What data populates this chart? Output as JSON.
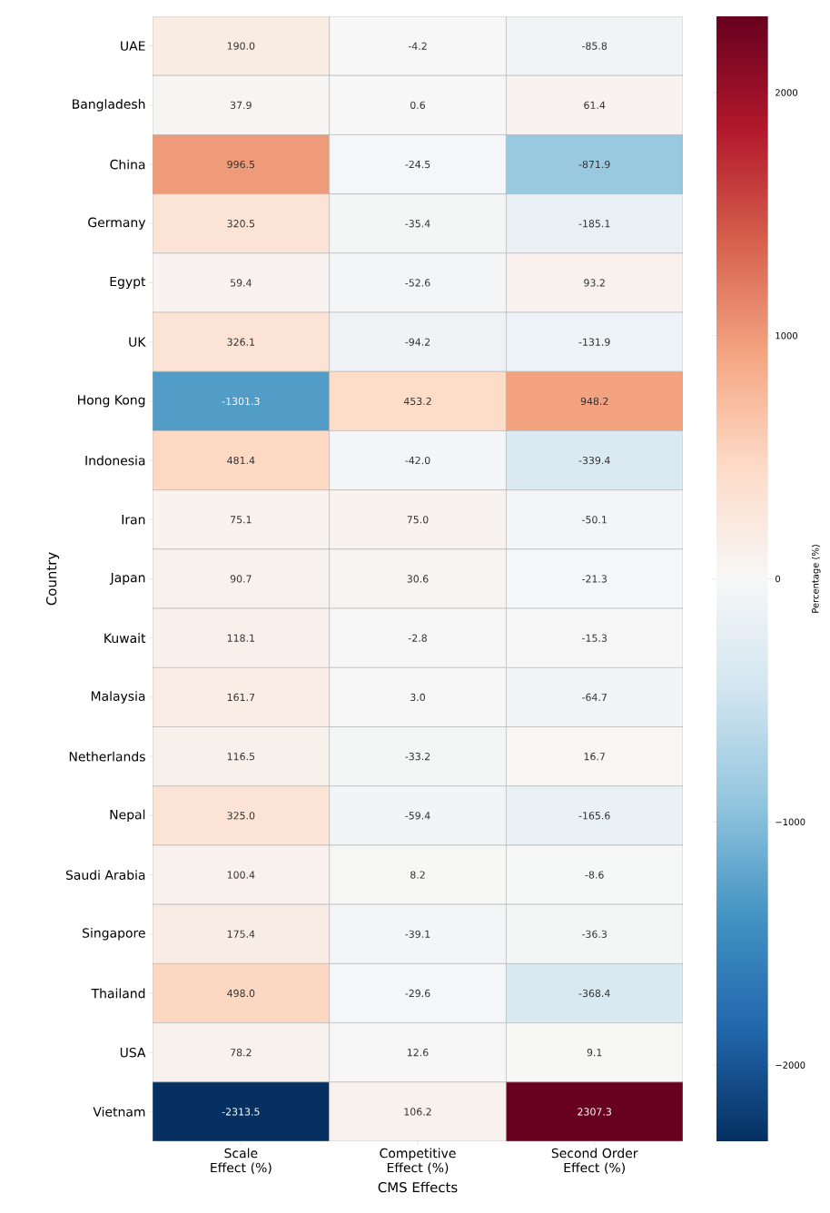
{
  "chart_data": {
    "type": "heatmap",
    "xlabel": "CMS Effects",
    "ylabel": "Country",
    "clabel": "Percentage (%)",
    "categories": [
      "Scale Effect (%)",
      "Competitive Effect (%)",
      "Second Order Effect (%)"
    ],
    "y_categories": [
      "UAE",
      "Bangladesh",
      "China",
      "Germany",
      "Egypt",
      "UK",
      "Hong Kong",
      "Indonesia",
      "Iran",
      "Japan",
      "Kuwait",
      "Malaysia",
      "Netherlands",
      "Nepal",
      "Saudi Arabia",
      "Singapore",
      "Thailand",
      "USA",
      "Vietnam"
    ],
    "cells": [
      [
        190.0,
        -4.2,
        -85.8
      ],
      [
        37.9,
        0.6,
        61.4
      ],
      [
        996.5,
        -24.5,
        -871.9
      ],
      [
        320.5,
        -35.4,
        -185.1
      ],
      [
        59.4,
        -52.6,
        93.2
      ],
      [
        326.1,
        -94.2,
        -131.9
      ],
      [
        -1301.3,
        453.2,
        948.2
      ],
      [
        481.4,
        -42.0,
        -339.4
      ],
      [
        75.1,
        75.0,
        -50.1
      ],
      [
        90.7,
        30.6,
        -21.3
      ],
      [
        118.1,
        -2.8,
        -15.3
      ],
      [
        161.7,
        3.0,
        -64.7
      ],
      [
        116.5,
        -33.2,
        16.7
      ],
      [
        325.0,
        -59.4,
        -165.6
      ],
      [
        100.4,
        8.2,
        -8.6
      ],
      [
        175.4,
        -39.1,
        -36.3
      ],
      [
        498.0,
        -29.6,
        -368.4
      ],
      [
        78.2,
        12.6,
        9.1
      ],
      [
        -2313.5,
        106.2,
        2307.3
      ]
    ],
    "cell_labels": [
      [
        "190.0",
        "-4.2",
        "-85.8"
      ],
      [
        "37.9",
        "0.6",
        "61.4"
      ],
      [
        "996.5",
        "-24.5",
        "-871.9"
      ],
      [
        "320.5",
        "-35.4",
        "-185.1"
      ],
      [
        "59.4",
        "-52.6",
        "93.2"
      ],
      [
        "326.1",
        "-94.2",
        "-131.9"
      ],
      [
        "-1301.3",
        "453.2",
        "948.2"
      ],
      [
        "481.4",
        "-42.0",
        "-339.4"
      ],
      [
        "75.1",
        "75.0",
        "-50.1"
      ],
      [
        "90.7",
        "30.6",
        "-21.3"
      ],
      [
        "118.1",
        "-2.8",
        "-15.3"
      ],
      [
        "161.7",
        "3.0",
        "-64.7"
      ],
      [
        "116.5",
        "-33.2",
        "16.7"
      ],
      [
        "325.0",
        "-59.4",
        "-165.6"
      ],
      [
        "100.4",
        "8.2",
        "-8.6"
      ],
      [
        "175.4",
        "-39.1",
        "-36.3"
      ],
      [
        "498.0",
        "-29.6",
        "-368.4"
      ],
      [
        "78.2",
        "12.6",
        "9.1"
      ],
      [
        "-2313.5",
        "106.2",
        "2307.3"
      ]
    ],
    "clim": [
      -2313.5,
      2313.5
    ],
    "cticks": [
      {
        "value": -2000,
        "label": "−2000"
      },
      {
        "value": -1000,
        "label": "−1000"
      },
      {
        "value": 0,
        "label": "0"
      },
      {
        "value": 1000,
        "label": "1000"
      },
      {
        "value": 2000,
        "label": "2000"
      }
    ]
  }
}
